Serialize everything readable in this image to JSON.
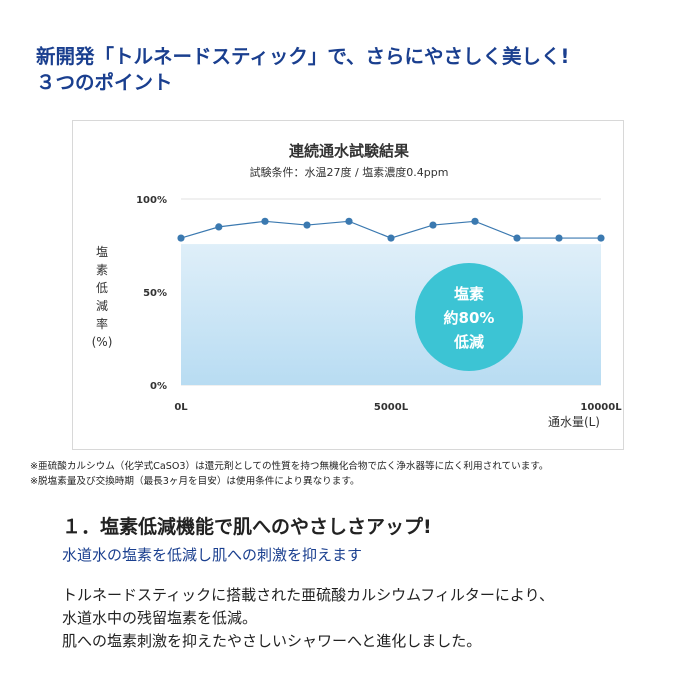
{
  "header": {
    "line1": "新開発「トルネードスティック」で、さらにやさしく美しく!",
    "line2": "３つのポイント"
  },
  "chart_data": {
    "type": "line",
    "title": "連続通水試験結果",
    "subtitle": "試験条件：水温27度 / 塩素濃度0.4ppm",
    "ylabel_chars": [
      "塩",
      "素",
      "低",
      "減",
      "率"
    ],
    "ylabel_unit": "(%)",
    "xlabel": "通水量(L)",
    "ylim": [
      0,
      100
    ],
    "xlim": [
      0,
      10000
    ],
    "y_ticks": [
      {
        "value": 100,
        "label": "100%"
      },
      {
        "value": 50,
        "label": "50%"
      },
      {
        "value": 0,
        "label": "0%"
      }
    ],
    "x_ticks": [
      {
        "value": 0,
        "label": "0L"
      },
      {
        "value": 5000,
        "label": "5000L"
      },
      {
        "value": 10000,
        "label": "10000L"
      }
    ],
    "grid": true,
    "series": [
      {
        "x": [
          0,
          900,
          2000,
          3000,
          4000,
          5000,
          6000,
          7000,
          8000,
          9000,
          10000
        ],
        "y": [
          79,
          85,
          88,
          86,
          88,
          79,
          86,
          88,
          79,
          79,
          79
        ]
      }
    ],
    "annotation": {
      "lines": [
        "塩素",
        "約80%",
        "低減"
      ]
    },
    "colors": {
      "line": "#3b79b0",
      "marker": "#3b79b0",
      "fill_top": "#dfeff9",
      "fill_bottom": "#b8dcf2",
      "badge": "#3cc4d4",
      "grid": "#e0e0e0"
    }
  },
  "notes": [
    "※亜硫酸カルシウム（化学式CaSO3）は還元剤としての性質を持つ無機化合物で広く浄水器等に広く利用されています。",
    "※脱塩素量及び交換時期（最長3ヶ月を目安）は使用条件により異なります。"
  ],
  "section": {
    "heading": "１．塩素低減機能で肌へのやさしさアップ!",
    "subheading": "水道水の塩素を低減し肌への刺激を抑えます",
    "body": [
      "トルネードスティックに搭載された亜硫酸カルシウムフィルターにより、",
      "水道水中の残留塩素を低減。",
      "肌への塩素刺激を抑えたやさしいシャワーへと進化しました。"
    ]
  }
}
